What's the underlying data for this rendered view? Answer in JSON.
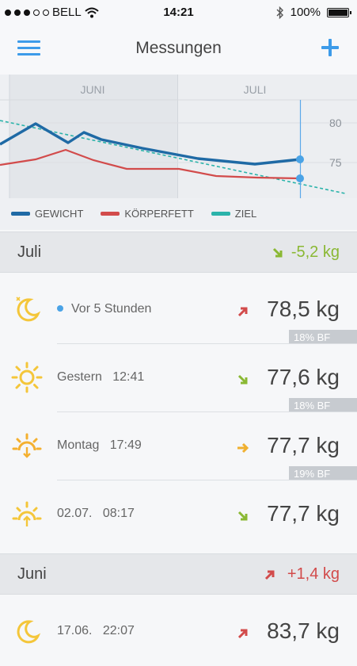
{
  "status_bar": {
    "carrier": "BELL",
    "time": "14:21",
    "battery": "100%"
  },
  "nav": {
    "title": "Messungen"
  },
  "chart_data": {
    "type": "line",
    "categories": [
      "JUNI",
      "JULI"
    ],
    "series": [
      {
        "name": "GEWICHT",
        "color": "#1f6aa5"
      },
      {
        "name": "KÖRPERFETT",
        "color": "#d24b4b"
      },
      {
        "name": "ZIEL",
        "color": "#2bb3aa"
      }
    ],
    "y_ticks": [
      "80",
      "75"
    ],
    "legend_position": "bottom-left"
  },
  "sections": [
    {
      "title": "Juli",
      "delta": "-5,2 kg",
      "delta_direction": "down",
      "delta_color": "#8ab833",
      "rows": [
        {
          "time_icon": "moon-icon",
          "label": "Vor 5 Stunden",
          "new": true,
          "trend": "up",
          "weight": "78,5 kg",
          "bf": "18% BF"
        },
        {
          "time_icon": "sun-icon",
          "label": "Gestern   12:41",
          "new": false,
          "trend": "down",
          "weight": "77,6 kg",
          "bf": "18% BF"
        },
        {
          "time_icon": "sunset-icon",
          "label": "Montag   17:49",
          "new": false,
          "trend": "flat",
          "weight": "77,7 kg",
          "bf": "19% BF"
        },
        {
          "time_icon": "sunrise-icon",
          "label": "02.07.   08:17",
          "new": false,
          "trend": "down",
          "weight": "77,7 kg",
          "bf": ""
        }
      ]
    },
    {
      "title": "Juni",
      "delta": "+1,4 kg",
      "delta_direction": "up",
      "delta_color": "#d24b4b",
      "rows": [
        {
          "time_icon": "moon-icon",
          "label": "17.06.   22:07",
          "new": false,
          "trend": "up",
          "weight": "83,7 kg",
          "bf": ""
        }
      ]
    }
  ],
  "colors": {
    "accent": "#3d9be9",
    "up": "#d24b4b",
    "down": "#8ab833",
    "flat": "#f0b030",
    "icon": "#f4c63a"
  }
}
